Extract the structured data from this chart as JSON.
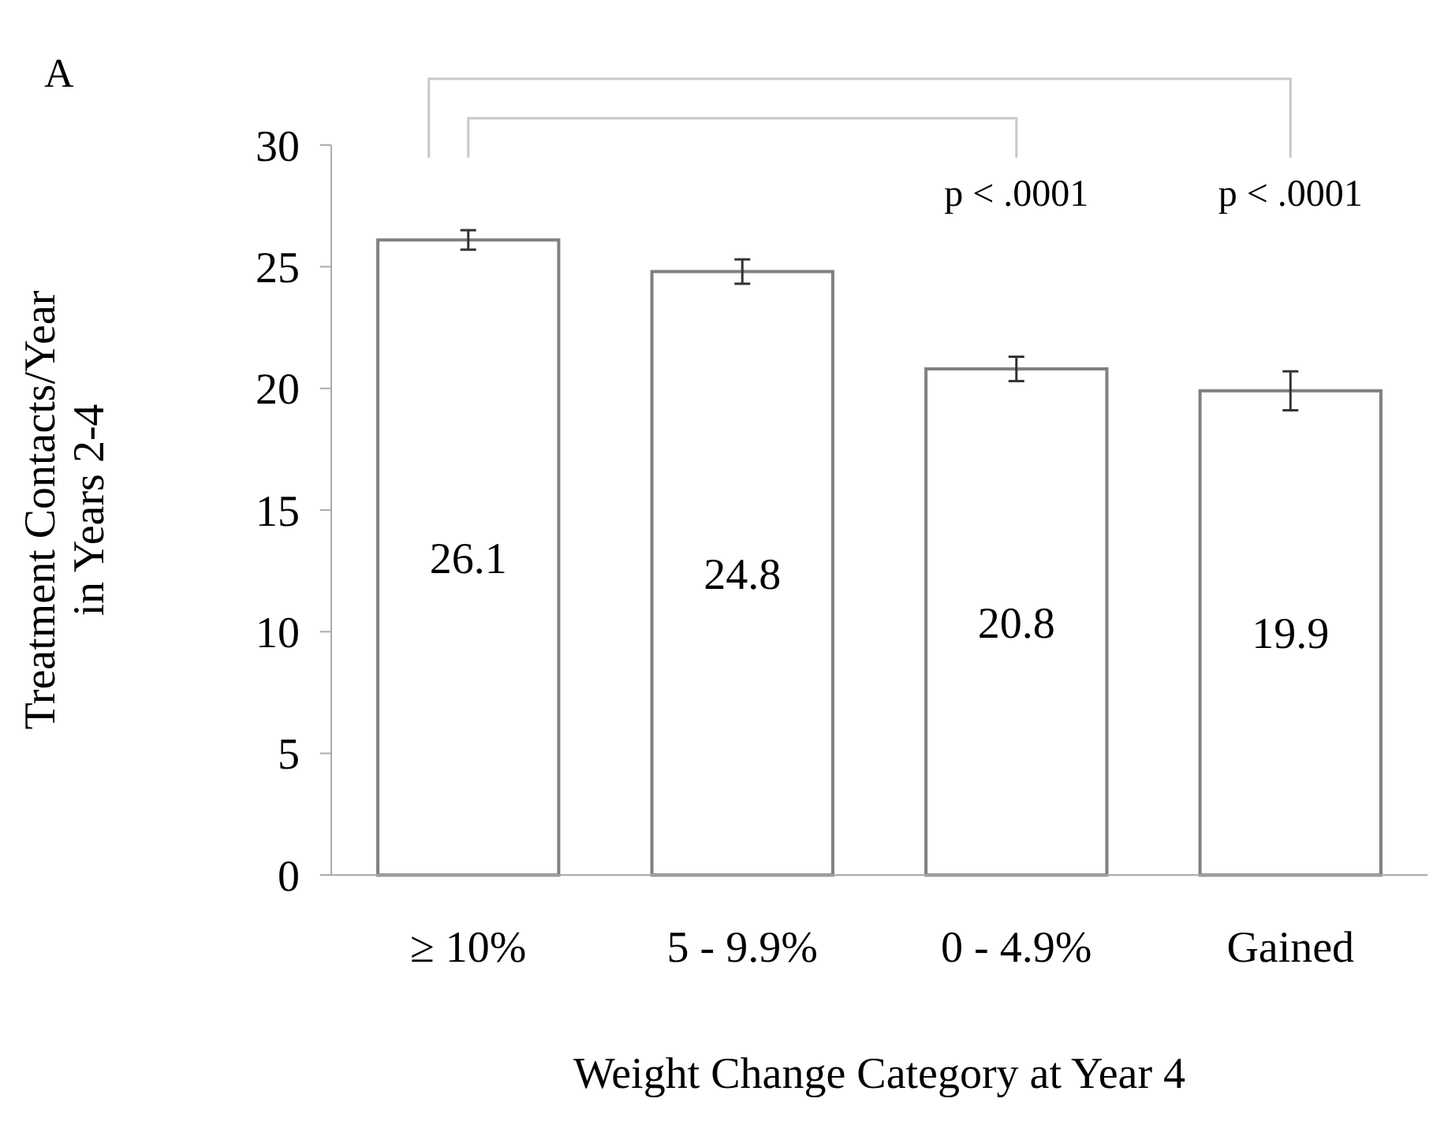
{
  "chart_data": {
    "type": "bar",
    "categories": [
      "≥ 10%",
      "5 - 9.9%",
      "0 - 4.9%",
      "Gained"
    ],
    "values": [
      26.1,
      24.8,
      20.8,
      19.9
    ],
    "errors": [
      0.4,
      0.5,
      0.5,
      0.8
    ],
    "color": "#ffffff",
    "data_labels": true,
    "xlabel": "Weight Change Category at Year 4",
    "ylabel": "Treatment Contacts/Year\nin Years 2-4",
    "ylim": [
      0,
      30
    ],
    "yticks": [
      0,
      5,
      10,
      15,
      20,
      25,
      30
    ],
    "grid": false,
    "annotations": [
      "A",
      "p < .0001",
      "p < .0001"
    ]
  }
}
